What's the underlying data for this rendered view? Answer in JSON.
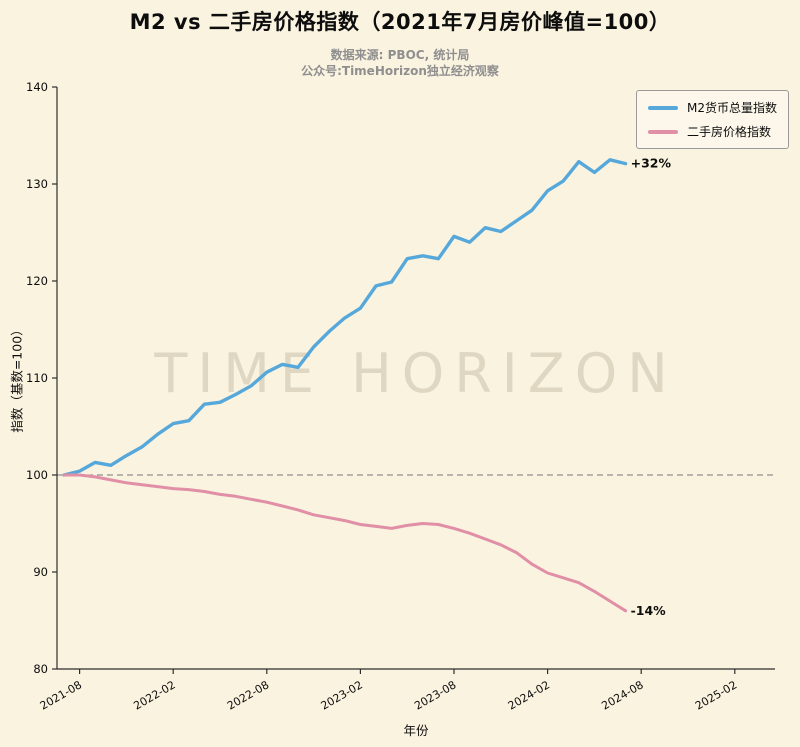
{
  "chart_data": {
    "type": "line",
    "title": "M2 vs 二手房价格指数（2021年7月房价峰值=100）",
    "subtitle_lines": [
      "数据来源: PBOC, 统计局",
      "公众号:TimeHorizon独立经济观察"
    ],
    "watermark": "TIME HORIZON",
    "xlabel": "年份",
    "ylabel": "指数（基数=100）",
    "ylim": [
      80,
      140
    ],
    "yticks": [
      80,
      90,
      100,
      110,
      120,
      130,
      140
    ],
    "baseline": 100,
    "grid": false,
    "legend_position": "upper right",
    "background": "#faf3e0",
    "x_tick_labels": [
      "2021-08",
      "2022-02",
      "2022-08",
      "2023-02",
      "2023-08",
      "2024-02",
      "2024-08",
      "2025-02"
    ],
    "x": [
      "2021-07",
      "2021-08",
      "2021-09",
      "2021-10",
      "2021-11",
      "2021-12",
      "2022-01",
      "2022-02",
      "2022-03",
      "2022-04",
      "2022-05",
      "2022-06",
      "2022-07",
      "2022-08",
      "2022-09",
      "2022-10",
      "2022-11",
      "2022-12",
      "2023-01",
      "2023-02",
      "2023-03",
      "2023-04",
      "2023-05",
      "2023-06",
      "2023-07",
      "2023-08",
      "2023-09",
      "2023-10",
      "2023-11",
      "2023-12",
      "2024-01",
      "2024-02",
      "2024-03",
      "2024-04",
      "2024-05",
      "2024-06",
      "2024-07"
    ],
    "series": [
      {
        "name": "M2货币总量指数",
        "color": "#56a8db",
        "width": 3.4,
        "values": [
          100.0,
          100.4,
          101.3,
          101.0,
          102.0,
          102.9,
          104.2,
          105.3,
          105.6,
          107.3,
          107.5,
          108.3,
          109.2,
          110.6,
          111.4,
          111.1,
          113.2,
          114.8,
          116.2,
          117.2,
          119.5,
          119.9,
          122.3,
          122.6,
          122.3,
          124.6,
          124.0,
          125.5,
          125.1,
          126.2,
          127.3,
          129.3,
          130.3,
          132.3,
          131.2,
          132.5,
          132.1
        ]
      },
      {
        "name": "二手房价格指数",
        "color": "#e08fa6",
        "width": 3.0,
        "values": [
          100.0,
          100.0,
          99.8,
          99.5,
          99.2,
          99.0,
          98.8,
          98.6,
          98.5,
          98.3,
          98.0,
          97.8,
          97.5,
          97.2,
          96.8,
          96.4,
          95.9,
          95.6,
          95.3,
          94.9,
          94.7,
          94.5,
          94.8,
          95.0,
          94.9,
          94.5,
          94.0,
          93.4,
          92.8,
          92.0,
          90.8,
          89.9,
          89.4,
          88.9,
          88.0,
          87.0,
          86.0
        ]
      }
    ],
    "annotations": [
      {
        "text": "+32%",
        "series": 0
      },
      {
        "text": "-14%",
        "series": 1
      }
    ]
  }
}
